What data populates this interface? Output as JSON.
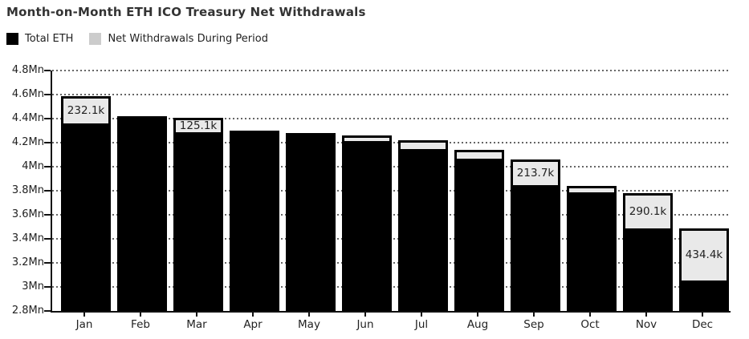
{
  "title": "Month-on-Month ETH ICO Treasury Net Withdrawals",
  "legend": {
    "items": [
      {
        "label": "Total ETH",
        "color": "#000000"
      },
      {
        "label": "Net Withdrawals During Period",
        "color": "#cccccc"
      }
    ]
  },
  "colors": {
    "bar": "#000000",
    "withdrawal_segment": "#e9e9e9",
    "grid": "#666666",
    "axis": "#111111",
    "text": "#222222",
    "title": "#333333"
  },
  "y_axis": {
    "tick_labels": [
      "4.8Mn",
      "4.6Mn",
      "4.4Mn",
      "4.2Mn",
      "4Mn",
      "3.8Mn",
      "3.6Mn",
      "3.4Mn",
      "3.2Mn",
      "3Mn",
      "2.8Mn"
    ],
    "min_mn": 2.8,
    "max_mn": 4.8,
    "step_mn": 0.2
  },
  "chart_data": {
    "type": "bar",
    "title": "Month-on-Month ETH ICO Treasury Net Withdrawals",
    "categories": [
      "Jan",
      "Feb",
      "Mar",
      "Apr",
      "May",
      "Jun",
      "Jul",
      "Aug",
      "Sep",
      "Oct",
      "Nov",
      "Dec"
    ],
    "series": [
      {
        "name": "Total ETH",
        "unit": "Mn ETH",
        "note": "full bar height (treasury balance)",
        "values_mn": [
          4.59,
          4.42,
          4.41,
          4.3,
          4.28,
          4.26,
          4.22,
          4.14,
          4.06,
          3.84,
          3.78,
          3.49
        ]
      },
      {
        "name": "Net Withdrawals During Period",
        "unit": "k ETH",
        "note": "gray segment at top of bar; null = no visible segment; unlabeled segments estimated from pixels",
        "values_k": [
          232.1,
          null,
          125.1,
          null,
          null,
          45,
          70,
          75,
          213.7,
          50,
          290.1,
          434.4
        ],
        "data_labels": [
          "232.1k",
          null,
          "125.1k",
          null,
          null,
          null,
          null,
          null,
          "213.7k",
          null,
          "290.1k",
          "434.4k"
        ]
      }
    ],
    "ylim": [
      2.8,
      4.8
    ],
    "grid": "horizontal dashed",
    "legend_position": "top-left"
  }
}
